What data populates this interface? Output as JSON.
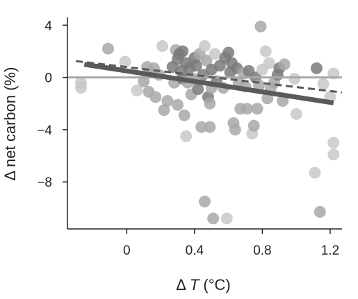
{
  "chart_data": {
    "type": "scatter",
    "xlabel_prefix": "Δ ",
    "xlabel_var": "T",
    "xlabel_unit": " (°C)",
    "ylabel": "Δ net carbon (%)",
    "xlim": [
      -0.35,
      1.27
    ],
    "ylim": [
      -11.6,
      4.6
    ],
    "x_ticks": [
      0,
      0.4,
      0.8,
      1.2
    ],
    "x_tick_labels": [
      "0",
      "0.4",
      "0.8",
      "1.2"
    ],
    "y_ticks": [
      4,
      0,
      -4,
      -8
    ],
    "y_tick_labels": [
      "4",
      "0",
      "−4",
      "−8"
    ],
    "grid": false,
    "colors": {
      "light": "#c8c8c8",
      "mid": "#a8a8a8",
      "dark": "#7a7a7a",
      "line": "#5a5a5a",
      "zero": "#a8a8a8"
    },
    "reference_line": {
      "y": 0
    },
    "fit_lines": [
      {
        "style": "solid",
        "x": [
          -0.25,
          1.22
        ],
        "y": [
          1.0,
          -1.95
        ]
      },
      {
        "style": "dashed",
        "x": [
          -0.3,
          1.27
        ],
        "y": [
          1.25,
          -1.15
        ]
      }
    ],
    "points": [
      {
        "x": -0.27,
        "y": -0.4,
        "shade": "light"
      },
      {
        "x": -0.27,
        "y": -0.8,
        "shade": "light"
      },
      {
        "x": -0.11,
        "y": 2.2,
        "shade": "mid"
      },
      {
        "x": -0.01,
        "y": 1.2,
        "shade": "light"
      },
      {
        "x": 0.06,
        "y": -1.0,
        "shade": "light"
      },
      {
        "x": 0.1,
        "y": -0.3,
        "shade": "mid"
      },
      {
        "x": 0.12,
        "y": 0.8,
        "shade": "mid"
      },
      {
        "x": 0.13,
        "y": -1.1,
        "shade": "mid"
      },
      {
        "x": 0.16,
        "y": 0.7,
        "shade": "mid"
      },
      {
        "x": 0.17,
        "y": -1.5,
        "shade": "mid"
      },
      {
        "x": 0.19,
        "y": 0.2,
        "shade": "mid"
      },
      {
        "x": 0.21,
        "y": 2.4,
        "shade": "light"
      },
      {
        "x": 0.22,
        "y": -2.5,
        "shade": "mid"
      },
      {
        "x": 0.24,
        "y": -1.8,
        "shade": "mid"
      },
      {
        "x": 0.27,
        "y": 0.8,
        "shade": "dark"
      },
      {
        "x": 0.28,
        "y": -0.4,
        "shade": "mid"
      },
      {
        "x": 0.29,
        "y": 2.1,
        "shade": "mid"
      },
      {
        "x": 0.3,
        "y": 1.4,
        "shade": "dark"
      },
      {
        "x": 0.3,
        "y": -2.1,
        "shade": "mid"
      },
      {
        "x": 0.31,
        "y": 1.8,
        "shade": "dark"
      },
      {
        "x": 0.32,
        "y": 0.5,
        "shade": "dark"
      },
      {
        "x": 0.33,
        "y": 2.0,
        "shade": "dark"
      },
      {
        "x": 0.33,
        "y": -0.1,
        "shade": "dark"
      },
      {
        "x": 0.34,
        "y": -2.9,
        "shade": "mid"
      },
      {
        "x": 0.35,
        "y": 1.1,
        "shade": "dark"
      },
      {
        "x": 0.35,
        "y": -4.5,
        "shade": "light"
      },
      {
        "x": 0.36,
        "y": -0.4,
        "shade": "mid"
      },
      {
        "x": 0.37,
        "y": 0.7,
        "shade": "dark"
      },
      {
        "x": 0.38,
        "y": -1.3,
        "shade": "mid"
      },
      {
        "x": 0.39,
        "y": -0.1,
        "shade": "mid"
      },
      {
        "x": 0.4,
        "y": 1.5,
        "shade": "dark"
      },
      {
        "x": 0.41,
        "y": 0.9,
        "shade": "dark"
      },
      {
        "x": 0.42,
        "y": -0.9,
        "shade": "dark"
      },
      {
        "x": 0.43,
        "y": 1.8,
        "shade": "mid"
      },
      {
        "x": 0.44,
        "y": -3.8,
        "shade": "mid"
      },
      {
        "x": 0.45,
        "y": 0.2,
        "shade": "dark"
      },
      {
        "x": 0.46,
        "y": 2.4,
        "shade": "light"
      },
      {
        "x": 0.46,
        "y": -9.5,
        "shade": "mid"
      },
      {
        "x": 0.47,
        "y": 1.3,
        "shade": "mid"
      },
      {
        "x": 0.48,
        "y": -1.5,
        "shade": "dark"
      },
      {
        "x": 0.49,
        "y": -2.0,
        "shade": "mid"
      },
      {
        "x": 0.49,
        "y": -3.8,
        "shade": "mid"
      },
      {
        "x": 0.5,
        "y": 0.6,
        "shade": "dark"
      },
      {
        "x": 0.5,
        "y": -0.8,
        "shade": "mid"
      },
      {
        "x": 0.51,
        "y": -10.8,
        "shade": "mid"
      },
      {
        "x": 0.52,
        "y": 1.8,
        "shade": "light"
      },
      {
        "x": 0.53,
        "y": -0.3,
        "shade": "dark"
      },
      {
        "x": 0.55,
        "y": 0.9,
        "shade": "dark"
      },
      {
        "x": 0.57,
        "y": -0.8,
        "shade": "mid"
      },
      {
        "x": 0.58,
        "y": 1.5,
        "shade": "dark"
      },
      {
        "x": 0.59,
        "y": -10.8,
        "shade": "light"
      },
      {
        "x": 0.6,
        "y": 1.9,
        "shade": "dark"
      },
      {
        "x": 0.61,
        "y": 0.4,
        "shade": "dark"
      },
      {
        "x": 0.62,
        "y": 1.1,
        "shade": "dark"
      },
      {
        "x": 0.63,
        "y": -3.5,
        "shade": "mid"
      },
      {
        "x": 0.64,
        "y": -4.0,
        "shade": "mid"
      },
      {
        "x": 0.65,
        "y": 0.7,
        "shade": "dark"
      },
      {
        "x": 0.66,
        "y": -0.4,
        "shade": "mid"
      },
      {
        "x": 0.67,
        "y": -2.4,
        "shade": "mid"
      },
      {
        "x": 0.69,
        "y": 0.3,
        "shade": "mid"
      },
      {
        "x": 0.7,
        "y": -0.7,
        "shade": "mid"
      },
      {
        "x": 0.71,
        "y": -2.4,
        "shade": "mid"
      },
      {
        "x": 0.72,
        "y": 0.5,
        "shade": "dark"
      },
      {
        "x": 0.74,
        "y": -4.3,
        "shade": "light"
      },
      {
        "x": 0.75,
        "y": -3.7,
        "shade": "mid"
      },
      {
        "x": 0.76,
        "y": 0.0,
        "shade": "dark"
      },
      {
        "x": 0.77,
        "y": -2.4,
        "shade": "mid"
      },
      {
        "x": 0.78,
        "y": -0.6,
        "shade": "mid"
      },
      {
        "x": 0.79,
        "y": 3.9,
        "shade": "mid"
      },
      {
        "x": 0.8,
        "y": 0.6,
        "shade": "light"
      },
      {
        "x": 0.82,
        "y": 2.0,
        "shade": "light"
      },
      {
        "x": 0.83,
        "y": -1.6,
        "shade": "mid"
      },
      {
        "x": 0.84,
        "y": 1.1,
        "shade": "light"
      },
      {
        "x": 0.85,
        "y": -0.8,
        "shade": "mid"
      },
      {
        "x": 0.87,
        "y": -0.4,
        "shade": "mid"
      },
      {
        "x": 0.89,
        "y": 0.2,
        "shade": "dark"
      },
      {
        "x": 0.9,
        "y": 0.7,
        "shade": "dark"
      },
      {
        "x": 0.92,
        "y": -1.8,
        "shade": "mid"
      },
      {
        "x": 0.93,
        "y": 1.0,
        "shade": "mid"
      },
      {
        "x": 0.99,
        "y": -0.1,
        "shade": "light"
      },
      {
        "x": 1.0,
        "y": -2.8,
        "shade": "light"
      },
      {
        "x": 1.11,
        "y": -7.3,
        "shade": "light"
      },
      {
        "x": 1.12,
        "y": 0.7,
        "shade": "dark"
      },
      {
        "x": 1.14,
        "y": -10.3,
        "shade": "mid"
      },
      {
        "x": 1.16,
        "y": -0.5,
        "shade": "light"
      },
      {
        "x": 1.2,
        "y": -1.5,
        "shade": "light"
      },
      {
        "x": 1.22,
        "y": 0.3,
        "shade": "light"
      },
      {
        "x": 1.22,
        "y": -5.0,
        "shade": "light"
      },
      {
        "x": 1.22,
        "y": -5.9,
        "shade": "light"
      }
    ]
  }
}
